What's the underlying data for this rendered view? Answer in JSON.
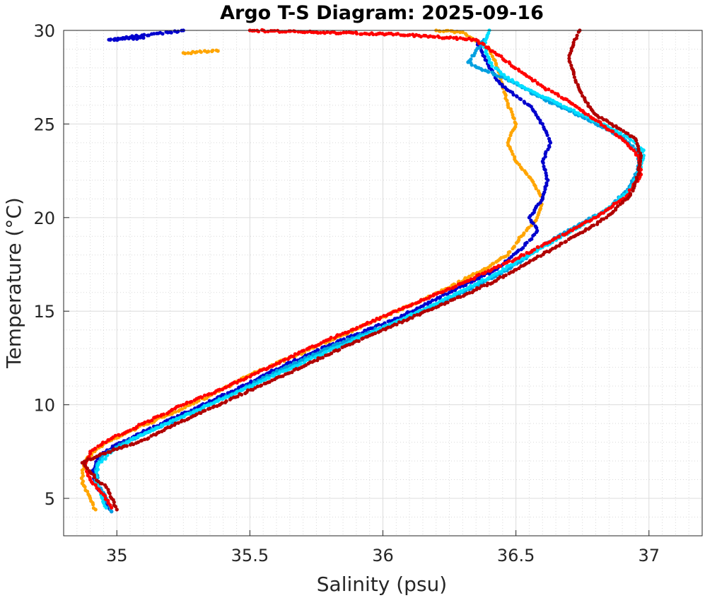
{
  "chart_data": {
    "type": "scatter",
    "title": "Argo T-S Diagram: 2025-09-16",
    "xlabel": "Salinity (psu)",
    "ylabel": "Temperature (°C)",
    "xlim": [
      34.8,
      37.2
    ],
    "ylim": [
      3,
      30
    ],
    "xticks": [
      35,
      35.5,
      36,
      36.5,
      37
    ],
    "xtick_labels": [
      "35",
      "35.5",
      "36",
      "36.5",
      "37"
    ],
    "yticks": [
      5,
      10,
      15,
      20,
      25,
      30
    ],
    "ytick_labels": [
      "5",
      "10",
      "15",
      "20",
      "25",
      "30"
    ],
    "grid": "major and minor, dotted",
    "legend": "none",
    "series": [
      {
        "color": "#ffa500",
        "points": [
          [
            34.92,
            4.4
          ],
          [
            34.9,
            5.0
          ],
          [
            34.87,
            5.8
          ],
          [
            34.87,
            6.5
          ],
          [
            34.89,
            7.2
          ],
          [
            34.95,
            7.9
          ],
          [
            35.05,
            8.6
          ],
          [
            35.2,
            9.5
          ],
          [
            35.35,
            10.5
          ],
          [
            35.5,
            11.6
          ],
          [
            35.7,
            12.8
          ],
          [
            35.92,
            14.2
          ],
          [
            36.15,
            15.6
          ],
          [
            36.35,
            17.0
          ],
          [
            36.47,
            18.0
          ],
          [
            36.52,
            19.0
          ],
          [
            36.58,
            20.0
          ],
          [
            36.6,
            21.0
          ],
          [
            36.56,
            22.0
          ],
          [
            36.5,
            23.0
          ],
          [
            36.47,
            24.0
          ],
          [
            36.5,
            25.0
          ],
          [
            36.47,
            26.0
          ],
          [
            36.45,
            27.0
          ],
          [
            36.43,
            28.0
          ],
          [
            36.4,
            29.0
          ],
          [
            36.3,
            29.9
          ],
          [
            36.2,
            30.0
          ],
          [
            35.38,
            28.9
          ],
          [
            35.25,
            28.8
          ]
        ]
      },
      {
        "color": "#0000cd",
        "points": [
          [
            34.98,
            4.3
          ],
          [
            34.95,
            5.0
          ],
          [
            34.92,
            5.8
          ],
          [
            34.91,
            6.5
          ],
          [
            34.93,
            7.2
          ],
          [
            35.0,
            7.9
          ],
          [
            35.12,
            8.7
          ],
          [
            35.28,
            9.7
          ],
          [
            35.43,
            10.7
          ],
          [
            35.6,
            11.9
          ],
          [
            35.8,
            13.2
          ],
          [
            36.05,
            14.6
          ],
          [
            36.25,
            16.0
          ],
          [
            36.42,
            17.2
          ],
          [
            36.52,
            18.3
          ],
          [
            36.58,
            19.3
          ],
          [
            36.55,
            20.0
          ],
          [
            36.6,
            21.0
          ],
          [
            36.62,
            22.0
          ],
          [
            36.6,
            23.0
          ],
          [
            36.63,
            24.0
          ],
          [
            36.6,
            25.0
          ],
          [
            36.55,
            26.0
          ],
          [
            36.45,
            27.0
          ],
          [
            36.4,
            28.0
          ],
          [
            36.35,
            29.5
          ],
          [
            35.1,
            29.6
          ],
          [
            34.97,
            29.5
          ],
          [
            35.25,
            30.0
          ]
        ]
      },
      {
        "color": "#00a0e0",
        "points": [
          [
            34.98,
            4.3
          ],
          [
            34.96,
            5.0
          ],
          [
            34.93,
            5.8
          ],
          [
            34.92,
            6.5
          ],
          [
            34.94,
            7.2
          ],
          [
            35.02,
            7.9
          ],
          [
            35.14,
            8.7
          ],
          [
            35.3,
            9.7
          ],
          [
            35.45,
            10.7
          ],
          [
            35.62,
            11.9
          ],
          [
            35.82,
            13.2
          ],
          [
            36.08,
            14.6
          ],
          [
            36.3,
            16.0
          ],
          [
            36.48,
            17.3
          ],
          [
            36.6,
            18.5
          ],
          [
            36.72,
            19.5
          ],
          [
            36.85,
            20.5
          ],
          [
            36.92,
            21.5
          ],
          [
            36.96,
            22.5
          ],
          [
            36.96,
            23.5
          ],
          [
            36.9,
            24.3
          ],
          [
            36.8,
            25.0
          ],
          [
            36.7,
            25.7
          ],
          [
            36.58,
            26.5
          ],
          [
            36.48,
            27.3
          ],
          [
            36.36,
            28.0
          ],
          [
            36.32,
            28.3
          ],
          [
            36.38,
            29.5
          ]
        ]
      },
      {
        "color": "#00dfff",
        "points": [
          [
            34.96,
            4.5
          ],
          [
            34.94,
            5.2
          ],
          [
            34.92,
            6.0
          ],
          [
            34.93,
            6.8
          ],
          [
            34.98,
            7.5
          ],
          [
            35.08,
            8.3
          ],
          [
            35.22,
            9.2
          ],
          [
            35.38,
            10.2
          ],
          [
            35.55,
            11.3
          ],
          [
            35.75,
            12.6
          ],
          [
            35.98,
            14.0
          ],
          [
            36.2,
            15.4
          ],
          [
            36.4,
            16.8
          ],
          [
            36.55,
            18.0
          ],
          [
            36.7,
            19.2
          ],
          [
            36.83,
            20.3
          ],
          [
            36.93,
            21.5
          ],
          [
            36.97,
            22.7
          ],
          [
            36.98,
            23.6
          ],
          [
            36.92,
            24.3
          ],
          [
            36.82,
            25.0
          ],
          [
            36.7,
            25.8
          ],
          [
            36.58,
            26.6
          ],
          [
            36.46,
            27.5
          ],
          [
            36.4,
            28.3
          ],
          [
            36.38,
            29.2
          ],
          [
            36.4,
            30.0
          ]
        ]
      },
      {
        "color": "#ff0000",
        "points": [
          [
            34.98,
            4.5
          ],
          [
            34.95,
            5.2
          ],
          [
            34.9,
            6.0
          ],
          [
            34.88,
            6.8
          ],
          [
            34.9,
            7.5
          ],
          [
            34.98,
            8.2
          ],
          [
            35.1,
            9.0
          ],
          [
            35.25,
            10.0
          ],
          [
            35.42,
            11.0
          ],
          [
            35.6,
            12.2
          ],
          [
            35.8,
            13.5
          ],
          [
            36.05,
            15.0
          ],
          [
            36.3,
            16.5
          ],
          [
            36.5,
            17.8
          ],
          [
            36.65,
            18.9
          ],
          [
            36.8,
            20.0
          ],
          [
            36.92,
            21.2
          ],
          [
            36.97,
            22.3
          ],
          [
            36.96,
            23.3
          ],
          [
            36.9,
            24.2
          ],
          [
            36.8,
            25.2
          ],
          [
            36.7,
            26.2
          ],
          [
            36.6,
            27.0
          ],
          [
            36.55,
            27.5
          ],
          [
            36.35,
            29.5
          ],
          [
            36.05,
            29.8
          ],
          [
            35.75,
            29.9
          ],
          [
            35.5,
            30.0
          ]
        ]
      },
      {
        "color": "#b00000",
        "points": [
          [
            35.0,
            4.4
          ],
          [
            34.98,
            5.0
          ],
          [
            34.96,
            5.6
          ],
          [
            34.93,
            5.9
          ],
          [
            34.9,
            6.4
          ],
          [
            34.87,
            6.9
          ],
          [
            34.95,
            7.4
          ],
          [
            35.08,
            8.0
          ],
          [
            35.2,
            8.8
          ],
          [
            35.35,
            9.8
          ],
          [
            35.52,
            10.9
          ],
          [
            35.72,
            12.2
          ],
          [
            35.95,
            13.7
          ],
          [
            36.2,
            15.2
          ],
          [
            36.42,
            16.6
          ],
          [
            36.57,
            17.8
          ],
          [
            36.72,
            19.0
          ],
          [
            36.84,
            20.0
          ],
          [
            36.93,
            21.2
          ],
          [
            36.96,
            22.3
          ],
          [
            36.97,
            23.3
          ],
          [
            36.95,
            24.2
          ],
          [
            36.88,
            24.8
          ],
          [
            36.8,
            25.5
          ],
          [
            36.75,
            26.5
          ],
          [
            36.72,
            27.5
          ],
          [
            36.7,
            28.5
          ],
          [
            36.72,
            29.5
          ],
          [
            36.74,
            30.0
          ]
        ]
      }
    ]
  }
}
